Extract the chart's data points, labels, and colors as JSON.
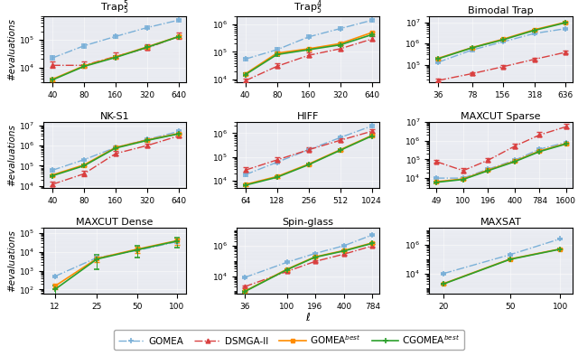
{
  "subplots": [
    {
      "title": "Trap$_5^5$",
      "xticks": [
        40,
        80,
        160,
        320,
        640
      ],
      "xticklabels": [
        "40",
        "80",
        "160",
        "320",
        "640"
      ],
      "ylim": [
        3000,
        700000
      ],
      "GOMEA": {
        "x": [
          40,
          80,
          160,
          320,
          640
        ],
        "y": [
          22000,
          60000,
          130000,
          270000,
          500000
        ],
        "yerr_lo": [
          3000,
          8000,
          15000,
          30000,
          60000
        ],
        "yerr_hi": [
          3000,
          8000,
          15000,
          30000,
          60000
        ]
      },
      "DSMGA-II": {
        "x": [
          40,
          80,
          160,
          320,
          640
        ],
        "y": [
          12000,
          12000,
          25000,
          50000,
          130000
        ],
        "yerr_lo": [
          2000,
          2000,
          4000,
          8000,
          20000
        ],
        "yerr_hi": [
          5000,
          5000,
          10000,
          20000,
          50000
        ]
      },
      "GOMEAbest": {
        "x": [
          40,
          80,
          160,
          320,
          640
        ],
        "y": [
          3800,
          11500,
          24000,
          55000,
          130000
        ],
        "yerr_lo": [
          500,
          1000,
          2000,
          5000,
          12000
        ],
        "yerr_hi": [
          500,
          1000,
          2000,
          5000,
          12000
        ]
      },
      "CGOMEAbest": {
        "x": [
          40,
          80,
          160,
          320,
          640
        ],
        "y": [
          3600,
          11000,
          23000,
          53000,
          128000
        ],
        "yerr_lo": [
          400,
          900,
          2000,
          4000,
          10000
        ],
        "yerr_hi": [
          400,
          900,
          2000,
          4000,
          10000
        ]
      }
    },
    {
      "title": "Trap$_5^4$",
      "xticks": [
        40,
        80,
        160,
        320,
        640
      ],
      "xticklabels": [
        "40",
        "80",
        "160",
        "320",
        "640"
      ],
      "ylim": [
        8000,
        2000000
      ],
      "GOMEA": {
        "x": [
          40,
          80,
          160,
          320,
          640
        ],
        "y": [
          55000,
          120000,
          350000,
          700000,
          1400000
        ],
        "yerr_lo": [
          5000,
          15000,
          40000,
          80000,
          150000
        ],
        "yerr_hi": [
          5000,
          15000,
          40000,
          80000,
          150000
        ]
      },
      "DSMGA-II": {
        "x": [
          40,
          80,
          160,
          320,
          640
        ],
        "y": [
          9000,
          30000,
          75000,
          130000,
          290000
        ],
        "yerr_lo": [
          1000,
          4000,
          10000,
          20000,
          40000
        ],
        "yerr_hi": [
          2000,
          8000,
          20000,
          40000,
          80000
        ]
      },
      "GOMEAbest": {
        "x": [
          40,
          80,
          160,
          320,
          640
        ],
        "y": [
          16000,
          90000,
          130000,
          200000,
          500000
        ],
        "yerr_lo": [
          2000,
          10000,
          15000,
          25000,
          60000
        ],
        "yerr_hi": [
          2000,
          10000,
          15000,
          25000,
          60000
        ]
      },
      "CGOMEAbest": {
        "x": [
          40,
          80,
          160,
          320,
          640
        ],
        "y": [
          15000,
          80000,
          120000,
          180000,
          420000
        ],
        "yerr_lo": [
          1500,
          8000,
          12000,
          20000,
          50000
        ],
        "yerr_hi": [
          1500,
          8000,
          12000,
          20000,
          50000
        ]
      }
    },
    {
      "title": "Bimodal Trap",
      "xticks": [
        36,
        78,
        156,
        318,
        636
      ],
      "xticklabels": [
        "36",
        "78",
        "156",
        "318",
        "636"
      ],
      "ylim": [
        15000,
        20000000
      ],
      "GOMEA": {
        "x": [
          36,
          78,
          156,
          318,
          636
        ],
        "y": [
          130000,
          500000,
          1200000,
          3000000,
          5000000
        ],
        "yerr_lo": [
          15000,
          60000,
          120000,
          300000,
          500000
        ],
        "yerr_hi": [
          15000,
          60000,
          120000,
          300000,
          500000
        ]
      },
      "DSMGA-II": {
        "x": [
          36,
          78,
          156,
          318,
          636
        ],
        "y": [
          18000,
          38000,
          80000,
          180000,
          380000
        ],
        "yerr_lo": [
          2000,
          4000,
          8000,
          20000,
          40000
        ],
        "yerr_hi": [
          4000,
          8000,
          15000,
          40000,
          80000
        ]
      },
      "GOMEAbest": {
        "x": [
          36,
          78,
          156,
          318,
          636
        ],
        "y": [
          200000,
          650000,
          1600000,
          4500000,
          10000000
        ],
        "yerr_lo": [
          20000,
          60000,
          150000,
          400000,
          900000
        ],
        "yerr_hi": [
          20000,
          60000,
          150000,
          400000,
          900000
        ]
      },
      "CGOMEAbest": {
        "x": [
          36,
          78,
          156,
          318,
          636
        ],
        "y": [
          190000,
          630000,
          1500000,
          4200000,
          9500000
        ],
        "yerr_lo": [
          18000,
          55000,
          140000,
          380000,
          850000
        ],
        "yerr_hi": [
          18000,
          55000,
          140000,
          380000,
          850000
        ]
      }
    },
    {
      "title": "NK-S1",
      "xticks": [
        40,
        80,
        160,
        320,
        640
      ],
      "xticklabels": [
        "40",
        "80",
        "160",
        "320",
        "640"
      ],
      "ylim": [
        8000,
        15000000
      ],
      "GOMEA": {
        "x": [
          40,
          80,
          160,
          320,
          640
        ],
        "y": [
          60000,
          200000,
          800000,
          2000000,
          5000000
        ],
        "yerr_lo": [
          8000,
          25000,
          100000,
          250000,
          600000
        ],
        "yerr_hi": [
          8000,
          25000,
          100000,
          250000,
          600000
        ]
      },
      "DSMGA-II": {
        "x": [
          40,
          80,
          160,
          320,
          640
        ],
        "y": [
          12000,
          40000,
          400000,
          1000000,
          3000000
        ],
        "yerr_lo": [
          2000,
          8000,
          60000,
          150000,
          400000
        ],
        "yerr_hi": [
          4000,
          15000,
          120000,
          300000,
          800000
        ]
      },
      "GOMEAbest": {
        "x": [
          40,
          80,
          160,
          320,
          640
        ],
        "y": [
          35000,
          110000,
          800000,
          1900000,
          4000000
        ],
        "yerr_lo": [
          4000,
          12000,
          90000,
          210000,
          450000
        ],
        "yerr_hi": [
          4000,
          12000,
          90000,
          210000,
          450000
        ]
      },
      "CGOMEAbest": {
        "x": [
          40,
          80,
          160,
          320,
          640
        ],
        "y": [
          32000,
          100000,
          750000,
          1800000,
          3800000
        ],
        "yerr_lo": [
          3500,
          11000,
          85000,
          200000,
          420000
        ],
        "yerr_hi": [
          3500,
          11000,
          85000,
          200000,
          420000
        ]
      }
    },
    {
      "title": "HIFF",
      "xticks": [
        64,
        128,
        256,
        512,
        1024
      ],
      "xticklabels": [
        "64",
        "128",
        "256",
        "512",
        "1024"
      ],
      "ylim": [
        5000,
        3000000
      ],
      "GOMEA": {
        "x": [
          64,
          128,
          256,
          512,
          1024
        ],
        "y": [
          18000,
          60000,
          200000,
          650000,
          2000000
        ],
        "yerr_lo": [
          2000,
          7000,
          22000,
          70000,
          220000
        ],
        "yerr_hi": [
          2000,
          7000,
          22000,
          70000,
          220000
        ]
      },
      "DSMGA-II": {
        "x": [
          64,
          128,
          256,
          512,
          1024
        ],
        "y": [
          28000,
          75000,
          200000,
          500000,
          1200000
        ],
        "yerr_lo": [
          4000,
          10000,
          25000,
          60000,
          150000
        ],
        "yerr_hi": [
          8000,
          20000,
          50000,
          120000,
          300000
        ]
      },
      "GOMEAbest": {
        "x": [
          64,
          128,
          256,
          512,
          1024
        ],
        "y": [
          7000,
          15000,
          50000,
          200000,
          800000
        ],
        "yerr_lo": [
          800,
          1500,
          5000,
          20000,
          80000
        ],
        "yerr_hi": [
          800,
          1500,
          5000,
          20000,
          80000
        ]
      },
      "CGOMEAbest": {
        "x": [
          64,
          128,
          256,
          512,
          1024
        ],
        "y": [
          6500,
          14000,
          47000,
          190000,
          760000
        ],
        "yerr_lo": [
          700,
          1400,
          4500,
          19000,
          75000
        ],
        "yerr_hi": [
          700,
          1400,
          4500,
          19000,
          75000
        ]
      }
    },
    {
      "title": "MAXCUT Sparse",
      "xticks": [
        49,
        100,
        196,
        400,
        784,
        1600
      ],
      "xticklabels": [
        "49",
        "100",
        "196",
        "400",
        "784",
        "1600"
      ],
      "ylim": [
        3000,
        10000000
      ],
      "GOMEA": {
        "x": [
          49,
          100,
          196,
          400,
          784,
          1600
        ],
        "y": [
          10000,
          10000,
          30000,
          90000,
          350000,
          800000
        ],
        "yerr_lo": [
          1000,
          1000,
          3000,
          9000,
          35000,
          80000
        ],
        "yerr_hi": [
          1000,
          1000,
          3000,
          9000,
          35000,
          80000
        ]
      },
      "DSMGA-II": {
        "x": [
          49,
          100,
          196,
          400,
          784,
          1600
        ],
        "y": [
          75000,
          25000,
          90000,
          500000,
          2000000,
          5500000
        ],
        "yerr_lo": [
          10000,
          5000,
          15000,
          100000,
          400000,
          1000000
        ],
        "yerr_hi": [
          20000,
          10000,
          30000,
          200000,
          800000,
          2000000
        ]
      },
      "GOMEAbest": {
        "x": [
          49,
          100,
          196,
          400,
          784,
          1600
        ],
        "y": [
          6500,
          9000,
          27000,
          80000,
          280000,
          700000
        ],
        "yerr_lo": [
          700,
          900,
          2700,
          8000,
          28000,
          70000
        ],
        "yerr_hi": [
          700,
          900,
          2700,
          8000,
          28000,
          70000
        ]
      },
      "CGOMEAbest": {
        "x": [
          49,
          100,
          196,
          400,
          784,
          1600
        ],
        "y": [
          6000,
          8500,
          25000,
          75000,
          260000,
          660000
        ],
        "yerr_lo": [
          600,
          850,
          2500,
          7500,
          26000,
          66000
        ],
        "yerr_hi": [
          600,
          850,
          2500,
          7500,
          26000,
          66000
        ]
      }
    },
    {
      "title": "MAXCUT Dense",
      "xticks": [
        12,
        25,
        50,
        100
      ],
      "xticklabels": [
        "12",
        "25",
        "50",
        "100"
      ],
      "ylim": [
        60,
        200000
      ],
      "GOMEA": {
        "x": [
          12,
          25,
          50,
          100
        ],
        "y": [
          500,
          5000,
          12000,
          35000
        ],
        "yerr_lo": [
          60,
          600,
          1400,
          4000
        ],
        "yerr_hi": [
          60,
          600,
          1400,
          4000
        ]
      },
      "DSMGA-II": {
        "x": [],
        "y": [],
        "yerr_lo": [],
        "yerr_hi": []
      },
      "GOMEAbest": {
        "x": [
          12,
          25,
          50,
          100
        ],
        "y": [
          150,
          4500,
          14000,
          40000
        ],
        "yerr_lo": [
          50,
          1500,
          5000,
          15000
        ],
        "yerr_hi": [
          50,
          1500,
          5000,
          15000
        ]
      },
      "CGOMEAbest": {
        "x": [
          12,
          25,
          50,
          100
        ],
        "y": [
          100,
          4200,
          13000,
          38000
        ],
        "yerr_lo": [
          70,
          3000,
          8000,
          20000
        ],
        "yerr_hi": [
          70,
          3000,
          8000,
          20000
        ]
      }
    },
    {
      "title": "Spin-glass",
      "xticks": [
        36,
        100,
        196,
        400,
        784
      ],
      "xticklabels": [
        "36",
        "100",
        "196",
        "400",
        "784"
      ],
      "ylim": [
        700,
        15000000
      ],
      "GOMEA": {
        "x": [
          36,
          100,
          196,
          400,
          784
        ],
        "y": [
          8000,
          80000,
          300000,
          1000000,
          5000000
        ],
        "yerr_lo": [
          900,
          9000,
          34000,
          110000,
          550000
        ],
        "yerr_hi": [
          900,
          9000,
          34000,
          110000,
          550000
        ]
      },
      "DSMGA-II": {
        "x": [
          36,
          100,
          196,
          400,
          784
        ],
        "y": [
          2000,
          20000,
          90000,
          280000,
          950000
        ],
        "yerr_lo": [
          250,
          2500,
          11000,
          35000,
          120000
        ],
        "yerr_hi": [
          500,
          5000,
          22000,
          70000,
          240000
        ]
      },
      "GOMEAbest": {
        "x": [
          36,
          100,
          196,
          400,
          784
        ],
        "y": [
          1000,
          28000,
          180000,
          480000,
          1500000
        ],
        "yerr_lo": [
          110,
          3000,
          20000,
          53000,
          165000
        ],
        "yerr_hi": [
          110,
          3000,
          20000,
          53000,
          165000
        ]
      },
      "CGOMEAbest": {
        "x": [
          36,
          100,
          196,
          400,
          784
        ],
        "y": [
          950,
          26000,
          170000,
          450000,
          1400000
        ],
        "yerr_lo": [
          100,
          2800,
          18000,
          50000,
          155000
        ],
        "yerr_hi": [
          100,
          2800,
          18000,
          50000,
          155000
        ]
      }
    },
    {
      "title": "MAXSAT",
      "xticks": [
        20,
        50,
        100
      ],
      "xticklabels": [
        "20",
        "50",
        "100"
      ],
      "ylim": [
        400,
        15000000
      ],
      "GOMEA": {
        "x": [
          20,
          50,
          100
        ],
        "y": [
          10000,
          200000,
          2500000
        ],
        "yerr_lo": [
          1200,
          24000,
          300000
        ],
        "yerr_hi": [
          1200,
          24000,
          300000
        ]
      },
      "DSMGA-II": {
        "x": [],
        "y": [],
        "yerr_lo": [],
        "yerr_hi": []
      },
      "GOMEAbest": {
        "x": [
          20,
          50,
          100
        ],
        "y": [
          2000,
          100000,
          500000
        ],
        "yerr_lo": [
          220,
          11000,
          55000
        ],
        "yerr_hi": [
          220,
          11000,
          55000
        ]
      },
      "CGOMEAbest": {
        "x": [
          20,
          50,
          100
        ],
        "y": [
          1900,
          95000,
          480000
        ],
        "yerr_lo": [
          200,
          10000,
          52000
        ],
        "yerr_hi": [
          200,
          10000,
          52000
        ]
      }
    }
  ],
  "algo_order": [
    "GOMEA",
    "DSMGA-II",
    "GOMEAbest",
    "CGOMEAbest"
  ],
  "algo_styles": {
    "GOMEA": {
      "color": "#7ab0d8",
      "linestyle": "dashdot",
      "marker": "+",
      "ms": 5,
      "lw": 1.0,
      "mew": 1.2
    },
    "DSMGA-II": {
      "color": "#d94040",
      "linestyle": "dashdot",
      "marker": "^",
      "ms": 3.5,
      "lw": 1.0,
      "mew": 1.0
    },
    "GOMEAbest": {
      "color": "#ff8c00",
      "linestyle": "solid",
      "marker": "s",
      "ms": 3.5,
      "lw": 1.2,
      "mew": 1.0
    },
    "CGOMEAbest": {
      "color": "#2ca02c",
      "linestyle": "solid",
      "marker": "+",
      "ms": 5,
      "lw": 1.2,
      "mew": 1.2
    }
  },
  "legend_labels": {
    "GOMEA": "GOMEA",
    "DSMGA-II": "DSMGA-II",
    "GOMEAbest": "GOMEA$^{best}$",
    "CGOMEAbest": "CGOMEA$^{best}$"
  },
  "ylabel": "#evaluations",
  "xlabel": "$\\ell$",
  "bg_color": "#e8eaf0",
  "fig_bg": "#ffffff",
  "title_fs": 8,
  "tick_fs": 6.5,
  "label_fs": 7.5,
  "legend_fs": 7.5
}
